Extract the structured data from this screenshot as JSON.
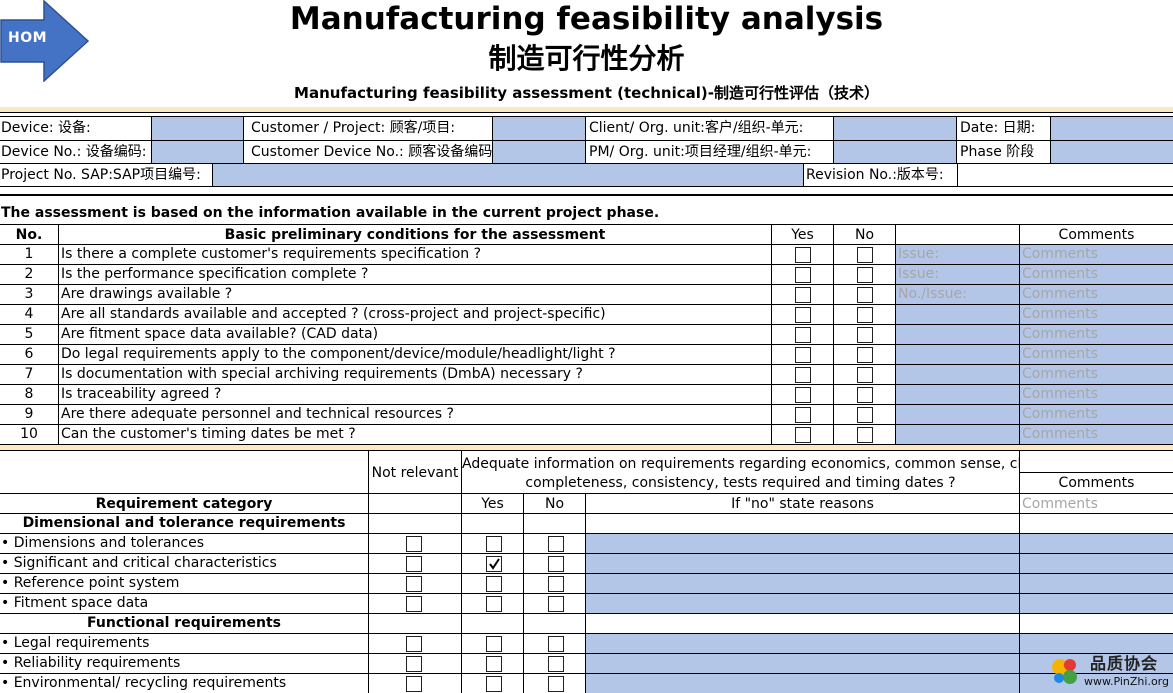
{
  "nav": {
    "home_label": "HOM"
  },
  "header": {
    "title_en": "Manufacturing feasibility analysis",
    "title_cn": "制造可行性分析",
    "subtitle": "Manufacturing feasibility assessment (technical)-制造可行性评估（技术）"
  },
  "info": {
    "device": "Device: 设备:",
    "customer_project": "Customer / Project: 顾客/项目:",
    "client_org": "Client/ Org. unit:客户/组织-单元:",
    "date": "Date: 日期:",
    "device_no": "Device No.: 设备编码:",
    "customer_device_no": "Customer Device No.: 顾客设备编码",
    "pm_org": "PM/ Org. unit:项目经理/组织-单元:",
    "phase": "Phase 阶段",
    "project_no": "Project No. SAP:SAP项目编号:",
    "revision_no": "Revision No.:版本号:"
  },
  "assessment": {
    "intro": "The assessment is based on the information available in the current project phase.",
    "headers": {
      "no": "No.",
      "condition": "Basic preliminary conditions for the assessment",
      "yes": "Yes",
      "no_col": "No",
      "comments": "Comments"
    },
    "rows": [
      {
        "no": "1",
        "text": "Is there a complete customer's requirements specification ?",
        "issue": "Issue:",
        "comment": "Comments"
      },
      {
        "no": "2",
        "text": "Is the performance specification complete ?",
        "issue": "Issue:",
        "comment": "Comments"
      },
      {
        "no": "3",
        "text": "Are drawings available ?",
        "issue": "No./Issue:",
        "comment": "Comments"
      },
      {
        "no": "4",
        "text": "Are all standards available and accepted ? (cross-project and project-specific)",
        "issue": "",
        "comment": "Comments"
      },
      {
        "no": "5",
        "text": "Are fitment space data available? (CAD data)",
        "issue": "",
        "comment": "Comments"
      },
      {
        "no": "6",
        "text": "Do legal requirements apply to the component/device/module/headlight/light ?",
        "issue": "",
        "comment": "Comments"
      },
      {
        "no": "7",
        "text": "Is documentation with special archiving requirements (DmbA) necessary ?",
        "issue": "",
        "comment": "Comments"
      },
      {
        "no": "8",
        "text": "Is traceability agreed ?",
        "issue": "",
        "comment": "Comments"
      },
      {
        "no": "9",
        "text": "Are there adequate personnel and technical resources ?",
        "issue": "",
        "comment": "Comments"
      },
      {
        "no": "10",
        "text": "Can the customer's timing dates be met ?",
        "issue": "",
        "comment": "Comments"
      }
    ]
  },
  "requirements": {
    "not_relevant": "Not relevant",
    "adequate_line1": "Adequate information on requirements regarding economics, common sense, clarity,",
    "adequate_line2": "completeness, consistency, tests required and timing dates ?",
    "comments": "Comments",
    "category_header": "Requirement category",
    "yes": "Yes",
    "no": "No",
    "reasons": "If \"no\" state reasons",
    "comments_placeholder": "Comments",
    "groups": [
      {
        "title": "Dimensional and tolerance requirements",
        "items": [
          {
            "label": "• Dimensions and tolerances",
            "yes_checked": false
          },
          {
            "label": "• Significant and critical characteristics",
            "yes_checked": true
          },
          {
            "label": "• Reference point system",
            "yes_checked": false
          },
          {
            "label": "• Fitment space data",
            "yes_checked": false
          }
        ]
      },
      {
        "title": "Functional requirements",
        "items": [
          {
            "label": "• Legal requirements",
            "yes_checked": false
          },
          {
            "label": "• Reliability requirements",
            "yes_checked": false
          },
          {
            "label": "• Environmental/ recycling requirements",
            "yes_checked": false
          }
        ]
      }
    ]
  },
  "watermark": {
    "name": "品质协会",
    "url": "www.PinZhi.org"
  },
  "colors": {
    "input_fill": "#b4c6e7",
    "arrow": "#4472c4",
    "band": "#fde9c1"
  }
}
